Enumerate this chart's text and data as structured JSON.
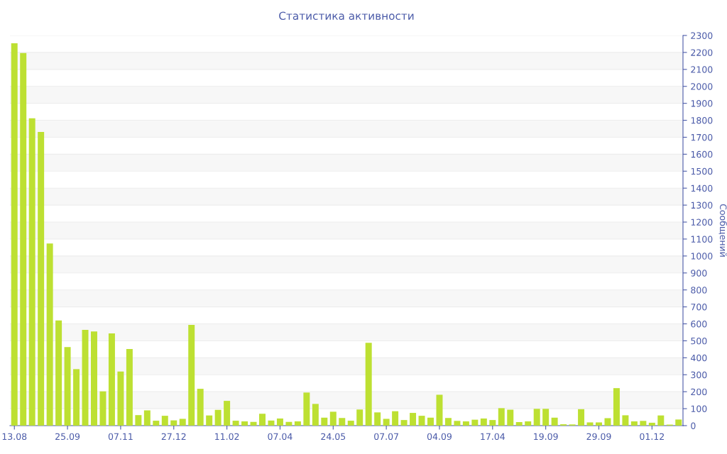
{
  "chart_data": {
    "type": "bar",
    "title": "Статистика активности",
    "ylabel": "Сообщений",
    "color": "#bde032",
    "categories": [
      "13.08",
      null,
      null,
      null,
      null,
      null,
      "25.09",
      null,
      null,
      null,
      null,
      null,
      "07.11",
      null,
      null,
      null,
      null,
      null,
      "27.12",
      null,
      null,
      null,
      null,
      null,
      "11.02",
      null,
      null,
      null,
      null,
      null,
      "07.04",
      null,
      null,
      null,
      null,
      null,
      "24.05",
      null,
      null,
      null,
      null,
      null,
      "07.07",
      null,
      null,
      null,
      null,
      null,
      "04.09",
      null,
      null,
      null,
      null,
      null,
      "17.04",
      null,
      null,
      null,
      null,
      null,
      "19.09",
      null,
      null,
      null,
      null,
      null,
      "29.09",
      null,
      null,
      null,
      null,
      null,
      "01.12",
      null,
      null,
      null
    ],
    "values": [
      2254,
      2196,
      1812,
      1731,
      1074,
      620,
      463,
      333,
      565,
      555,
      202,
      544,
      319,
      452,
      62,
      90,
      29,
      58,
      31,
      40,
      594,
      217,
      60,
      93,
      146,
      29,
      25,
      22,
      70,
      30,
      42,
      22,
      25,
      195,
      128,
      47,
      82,
      45,
      29,
      95,
      488,
      78,
      40,
      85,
      33,
      75,
      58,
      47,
      182,
      45,
      28,
      25,
      35,
      42,
      33,
      103,
      94,
      21,
      25,
      99,
      99,
      47,
      8,
      7,
      97,
      19,
      19,
      44,
      221,
      61,
      25,
      28,
      17,
      60,
      6,
      36
    ],
    "ylim": [
      0,
      2300
    ],
    "yticks": [
      0,
      100,
      200,
      300,
      400,
      500,
      600,
      700,
      800,
      900,
      1000,
      1100,
      1200,
      1300,
      1400,
      1500,
      1600,
      1700,
      1800,
      1900,
      2000,
      2100,
      2200,
      2300
    ],
    "grid": "y"
  }
}
